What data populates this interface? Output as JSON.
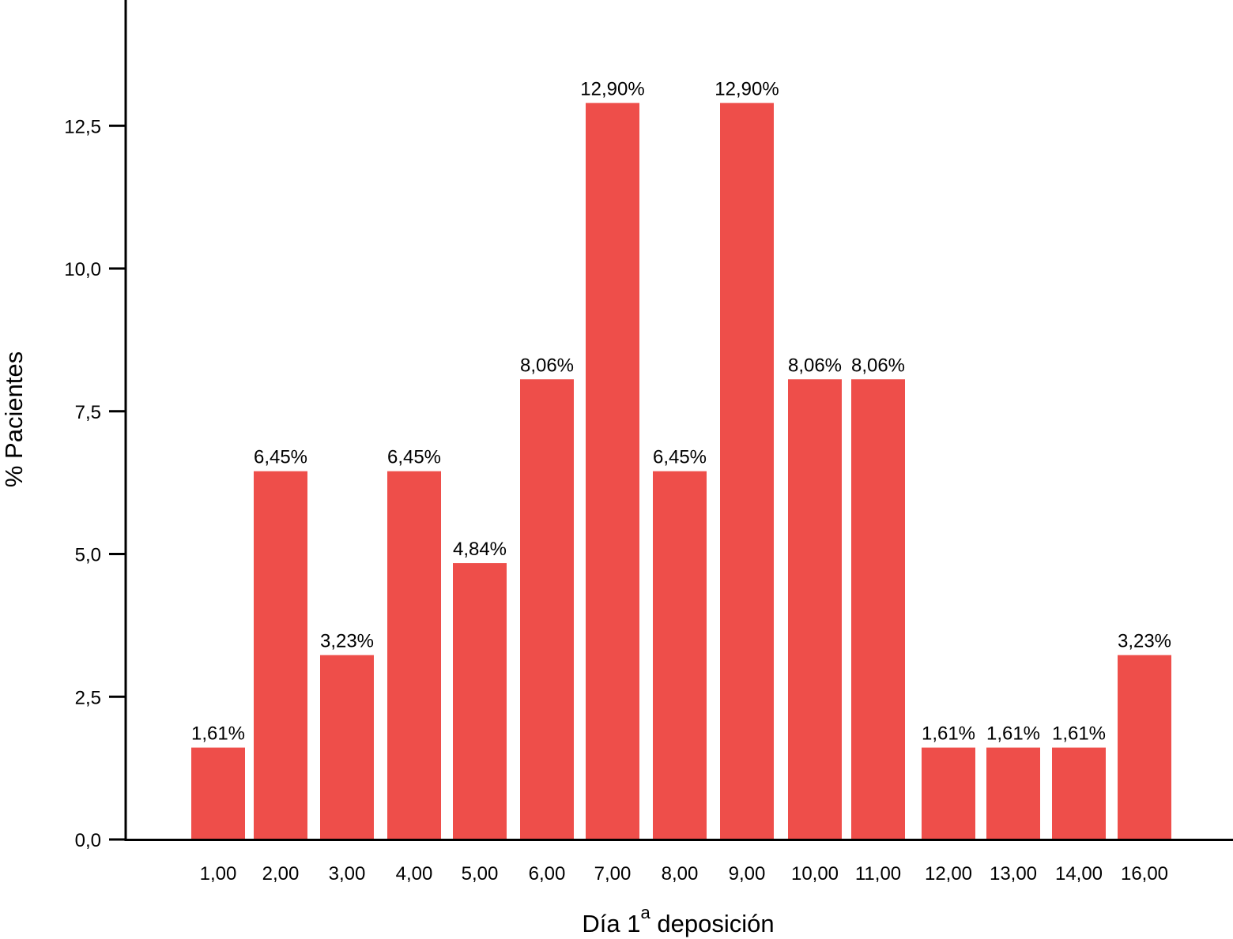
{
  "chart_data": {
    "type": "bar",
    "categories": [
      "1,00",
      "2,00",
      "3,00",
      "4,00",
      "5,00",
      "6,00",
      "7,00",
      "8,00",
      "9,00",
      "10,00",
      "11,00",
      "12,00",
      "13,00",
      "14,00",
      "16,00"
    ],
    "values": [
      1.61,
      6.45,
      3.23,
      6.45,
      4.84,
      8.06,
      12.9,
      6.45,
      12.9,
      8.06,
      8.06,
      1.61,
      1.61,
      1.61,
      3.23
    ],
    "data_labels": [
      "1,61%",
      "6,45%",
      "3,23%",
      "6,45%",
      "4,84%",
      "8,06%",
      "12,90%",
      "6,45%",
      "12,90%",
      "8,06%",
      "8,06%",
      "1,61%",
      "1,61%",
      "1,61%",
      "3,23%"
    ],
    "xlabel": "Día 1",
    "xlabel_superscript": "a",
    "xlabel_suffix": " deposición",
    "ylabel": "% Pacientes",
    "ylim": [
      0,
      15
    ],
    "yticks": [
      0,
      2.5,
      5,
      7.5,
      10,
      12.5
    ],
    "ytick_labels": [
      "0,0",
      "2,5",
      "5,0",
      "7,5",
      "10,0",
      "12,5"
    ],
    "grid": false,
    "bar_color": "#ee4e4a"
  }
}
